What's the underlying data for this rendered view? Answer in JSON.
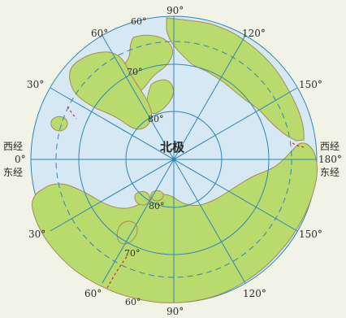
{
  "colors": {
    "ocean": "#d7e8f5",
    "land": "#b9da6d",
    "land_stroke": "#a78c53",
    "grid": "#2f86b4",
    "boundary_dash": "#c62c2c",
    "background": "#f1f3e6"
  },
  "labels": {
    "center": "北极",
    "top_lon": "90°",
    "bottom_lon": "90°",
    "left_lon_top": "西经",
    "left_lon_mid": "0°",
    "left_lon_bottom": "东经",
    "right_lon_top": "西经",
    "right_lon_mid": "180°",
    "right_lon_bottom": "东经",
    "lon_60_top": "60°",
    "lon_120_top": "120°",
    "lon_30_left": "30°",
    "lon_150_right": "150°",
    "lon_30_bottom_left": "30°",
    "lon_150_bottom_right": "150°",
    "lon_60_bottom": "60°",
    "lon_120_bottom": "120°",
    "lat_60_top": "60°",
    "lat_70_top": "70°",
    "lat_80_top": "80°",
    "lat_80_bottom": "80°",
    "lat_70_bottom": "70°",
    "lat_60_bottom": "60°"
  }
}
